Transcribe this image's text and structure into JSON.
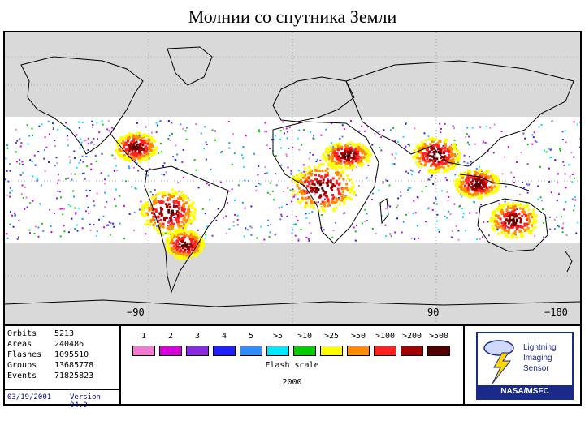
{
  "title": "Молнии со спутника Земли",
  "map": {
    "longitude_labels": [
      "−90",
      "90",
      "−180"
    ],
    "colors": {
      "land_white": "#ffffff",
      "outside_band": "#d9d9d9",
      "coastline": "#000000",
      "grid": "#707070"
    }
  },
  "info": {
    "rows": [
      {
        "key": "Orbits",
        "value": "5213"
      },
      {
        "key": "Areas",
        "value": "240486"
      },
      {
        "key": "Flashes",
        "value": "1095510"
      },
      {
        "key": "Groups",
        "value": "13685778"
      },
      {
        "key": "Events",
        "value": "71825823"
      }
    ],
    "date": "03/19/2001",
    "version": "Version 04.0"
  },
  "flash_scale": {
    "labels": [
      "1",
      "2",
      "3",
      "4",
      "5",
      ">5",
      ">10",
      ">25",
      ">50",
      ">100",
      ">200",
      ">500"
    ],
    "colors": [
      "#f07ad0",
      "#d800d8",
      "#8a2be2",
      "#2020ff",
      "#2f8fff",
      "#00e8ff",
      "#00cc00",
      "#ffff00",
      "#ff8c00",
      "#ff2020",
      "#a00000",
      "#500000"
    ],
    "title": "Flash scale",
    "year": "2000"
  },
  "logo": {
    "name_line1": "Lightning",
    "name_line2": "Imaging",
    "name_line3": "Sensor",
    "org": "NASA/MSFC",
    "icon": "lightning-bolt-cloud-icon"
  }
}
